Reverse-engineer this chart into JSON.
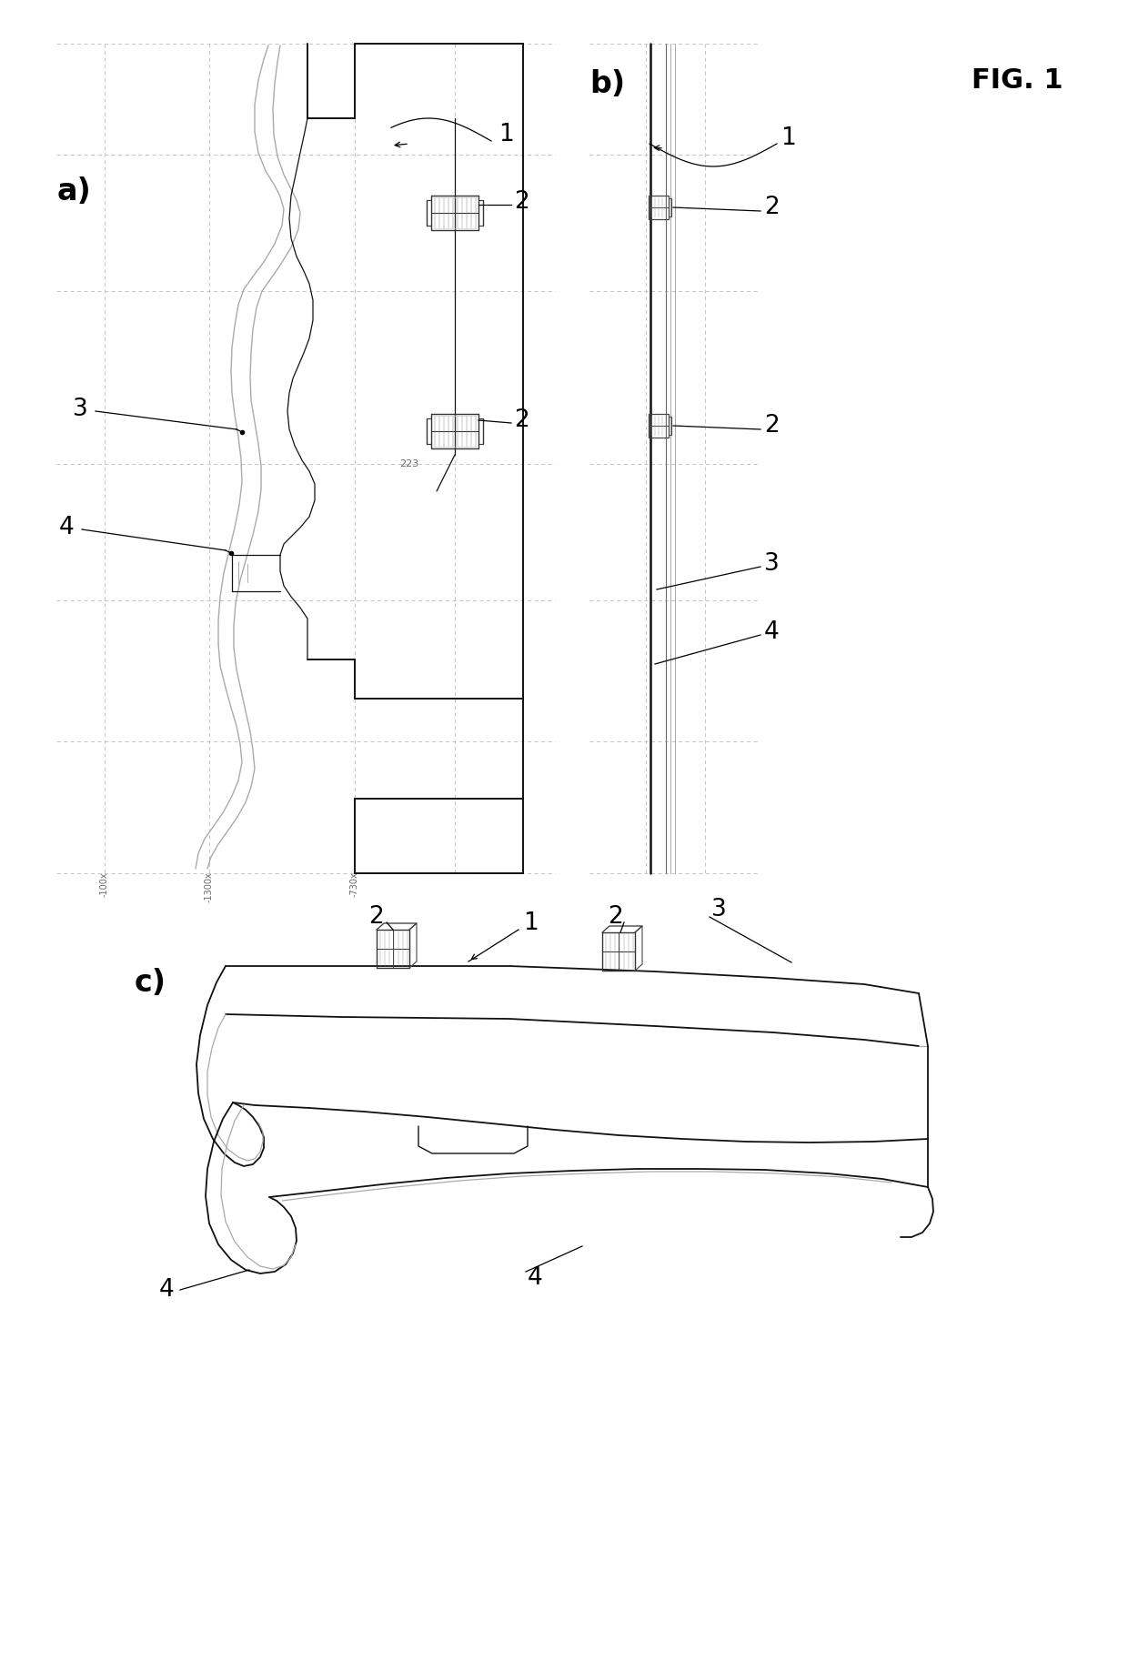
{
  "background_color": "#ffffff",
  "fig_label": "FIG. 1",
  "panel_a_label": "a)",
  "panel_b_label": "b)",
  "panel_c_label": "c)",
  "grid_color": "#bbbbbb",
  "line_dark": "#111111",
  "line_gray": "#999999",
  "line_med": "#555555",
  "ref_nums": [
    "1",
    "2",
    "3",
    "4"
  ]
}
